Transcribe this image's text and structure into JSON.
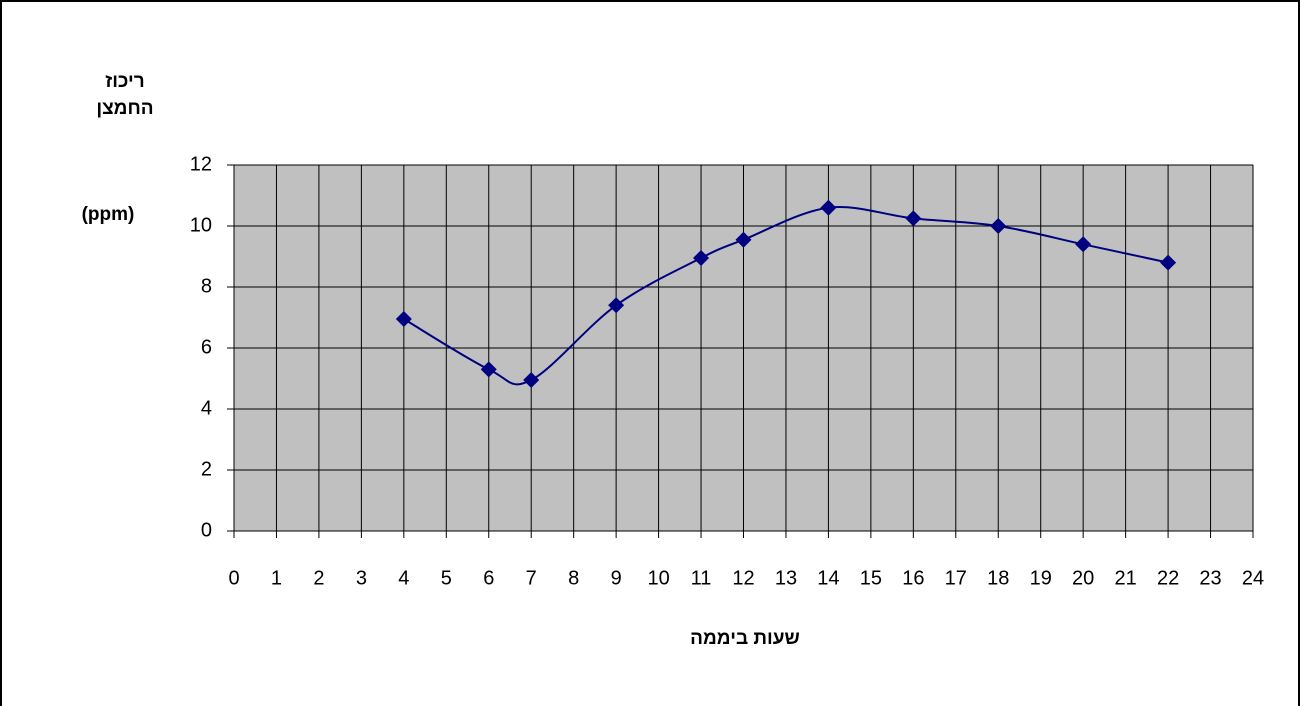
{
  "chart_data": {
    "type": "line",
    "smooth": true,
    "y_label": [
      "ריכוז",
      "החמצן",
      "(ppm)"
    ],
    "x_label": "שעות ביממה",
    "x": [
      4,
      6,
      7,
      9,
      11,
      12,
      14,
      16,
      18,
      20,
      22
    ],
    "series": [
      {
        "color": "#000080",
        "values": [
          6.95,
          5.3,
          4.95,
          7.4,
          8.95,
          9.55,
          10.6,
          10.25,
          10.0,
          9.4,
          8.8
        ]
      }
    ],
    "xlim": [
      0,
      24
    ],
    "xticks": [
      0,
      1,
      2,
      3,
      4,
      5,
      6,
      7,
      8,
      9,
      10,
      11,
      12,
      13,
      14,
      15,
      16,
      17,
      18,
      19,
      20,
      21,
      22,
      23,
      24
    ],
    "ylim": [
      0,
      12
    ],
    "yticks": [
      0,
      2,
      4,
      6,
      8,
      10,
      12
    ],
    "grid": true,
    "plot_background": "#c0c0c0"
  }
}
